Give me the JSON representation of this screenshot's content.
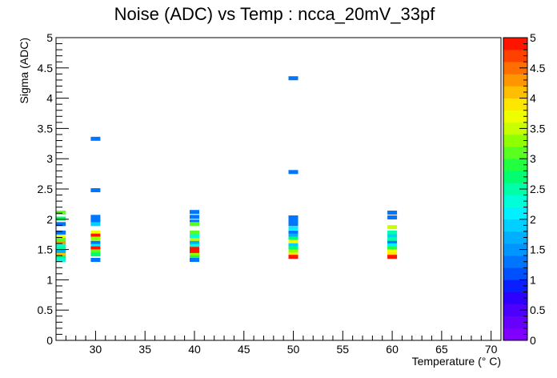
{
  "chart_data": {
    "type": "heatmap",
    "title": "Noise (ADC) vs Temp : ncca_20mV_33pf",
    "xlabel": "Temperature (° C)",
    "ylabel": "Sigma (ADC)",
    "xlim": [
      26,
      71
    ],
    "ylim": [
      0,
      5
    ],
    "x_ticks": [
      "30",
      "35",
      "40",
      "45",
      "50",
      "55",
      "60",
      "65",
      "70"
    ],
    "y_ticks": [
      "0",
      "0.5",
      "1",
      "1.5",
      "2",
      "2.5",
      "3",
      "3.5",
      "4",
      "4.5",
      "5"
    ],
    "z_range": [
      0,
      5
    ],
    "z_ticks": [
      "0",
      "0.5",
      "1",
      "1.5",
      "2",
      "2.5",
      "3",
      "3.5",
      "4",
      "4.5",
      "5"
    ],
    "palette": [
      "#7f00ff",
      "#6600ff",
      "#4c00ff",
      "#2d00ff",
      "#0a1fff",
      "#0050ff",
      "#0075ff",
      "#0096ff",
      "#00b0ff",
      "#00d0ff",
      "#00f0ff",
      "#00ffd8",
      "#00ffa8",
      "#00ff70",
      "#20ff40",
      "#58ff20",
      "#90ff00",
      "#c8ff00",
      "#f0ff00",
      "#ffe600",
      "#ffbe00",
      "#ff9600",
      "#ff6e00",
      "#ff4100",
      "#ff1400"
    ],
    "cells": [
      {
        "x": 26.5,
        "y": 2.11,
        "z": 3.0
      },
      {
        "x": 26.5,
        "y": 2.01,
        "z": 2.6
      },
      {
        "x": 26.5,
        "y": 1.92,
        "z": 1.3
      },
      {
        "x": 26.5,
        "y": 1.78,
        "z": 1.2
      },
      {
        "x": 26.5,
        "y": 1.71,
        "z": 3.6
      },
      {
        "x": 26.5,
        "y": 1.66,
        "z": 3.0
      },
      {
        "x": 26.5,
        "y": 1.6,
        "z": 4.3
      },
      {
        "x": 26.5,
        "y": 1.56,
        "z": 2.2
      },
      {
        "x": 26.5,
        "y": 1.51,
        "z": 2.4
      },
      {
        "x": 26.5,
        "y": 1.46,
        "z": 1.7
      },
      {
        "x": 26.5,
        "y": 1.41,
        "z": 4.1
      },
      {
        "x": 26.5,
        "y": 1.37,
        "z": 2.8
      },
      {
        "x": 26.5,
        "y": 1.33,
        "z": 2.2
      },
      {
        "x": 30,
        "y": 3.33,
        "z": 1.2
      },
      {
        "x": 30,
        "y": 2.48,
        "z": 1.2
      },
      {
        "x": 30,
        "y": 2.04,
        "z": 1.2
      },
      {
        "x": 30,
        "y": 1.98,
        "z": 1.2
      },
      {
        "x": 30,
        "y": 1.92,
        "z": 1.8
      },
      {
        "x": 30,
        "y": 1.78,
        "z": 3.6
      },
      {
        "x": 30,
        "y": 1.73,
        "z": 4.8
      },
      {
        "x": 30,
        "y": 1.68,
        "z": 3.2
      },
      {
        "x": 30,
        "y": 1.61,
        "z": 1.2
      },
      {
        "x": 30,
        "y": 1.56,
        "z": 2.0
      },
      {
        "x": 30,
        "y": 1.52,
        "z": 4.8
      },
      {
        "x": 30,
        "y": 1.47,
        "z": 3.0
      },
      {
        "x": 30,
        "y": 1.42,
        "z": 2.6
      },
      {
        "x": 30,
        "y": 1.33,
        "z": 1.2
      },
      {
        "x": 40,
        "y": 2.12,
        "z": 1.2
      },
      {
        "x": 40,
        "y": 2.04,
        "z": 1.2
      },
      {
        "x": 40,
        "y": 1.96,
        "z": 1.2
      },
      {
        "x": 40,
        "y": 1.92,
        "z": 3.0
      },
      {
        "x": 40,
        "y": 1.78,
        "z": 3.1
      },
      {
        "x": 40,
        "y": 1.72,
        "z": 2.3
      },
      {
        "x": 40,
        "y": 1.66,
        "z": 3.4
      },
      {
        "x": 40,
        "y": 1.61,
        "z": 1.6
      },
      {
        "x": 40,
        "y": 1.56,
        "z": 2.3
      },
      {
        "x": 40,
        "y": 1.51,
        "z": 4.8
      },
      {
        "x": 40,
        "y": 1.46,
        "z": 4.8
      },
      {
        "x": 40,
        "y": 1.41,
        "z": 3.3
      },
      {
        "x": 40,
        "y": 1.37,
        "z": 2.9
      },
      {
        "x": 40,
        "y": 1.33,
        "z": 1.2
      },
      {
        "x": 50,
        "y": 4.33,
        "z": 1.2
      },
      {
        "x": 50,
        "y": 2.78,
        "z": 1.2
      },
      {
        "x": 50,
        "y": 2.03,
        "z": 1.2
      },
      {
        "x": 50,
        "y": 1.97,
        "z": 1.2
      },
      {
        "x": 50,
        "y": 1.92,
        "z": 1.2
      },
      {
        "x": 50,
        "y": 1.85,
        "z": 2.0
      },
      {
        "x": 50,
        "y": 1.78,
        "z": 1.3
      },
      {
        "x": 50,
        "y": 1.73,
        "z": 1.6
      },
      {
        "x": 50,
        "y": 1.68,
        "z": 2.8
      },
      {
        "x": 50,
        "y": 1.63,
        "z": 3.6
      },
      {
        "x": 50,
        "y": 1.57,
        "z": 1.8
      },
      {
        "x": 50,
        "y": 1.52,
        "z": 2.8
      },
      {
        "x": 50,
        "y": 1.47,
        "z": 3.2
      },
      {
        "x": 50,
        "y": 1.42,
        "z": 3.9
      },
      {
        "x": 50,
        "y": 1.38,
        "z": 4.8
      },
      {
        "x": 60,
        "y": 2.11,
        "z": 1.2
      },
      {
        "x": 60,
        "y": 2.03,
        "z": 1.2
      },
      {
        "x": 60,
        "y": 1.87,
        "z": 3.4
      },
      {
        "x": 60,
        "y": 1.78,
        "z": 2.4
      },
      {
        "x": 60,
        "y": 1.72,
        "z": 1.8
      },
      {
        "x": 60,
        "y": 1.67,
        "z": 2.4
      },
      {
        "x": 60,
        "y": 1.61,
        "z": 1.2
      },
      {
        "x": 60,
        "y": 1.57,
        "z": 2.0
      },
      {
        "x": 60,
        "y": 1.52,
        "z": 2.9
      },
      {
        "x": 60,
        "y": 1.47,
        "z": 3.6
      },
      {
        "x": 60,
        "y": 1.43,
        "z": 3.9
      },
      {
        "x": 60,
        "y": 1.38,
        "z": 4.8
      }
    ]
  }
}
